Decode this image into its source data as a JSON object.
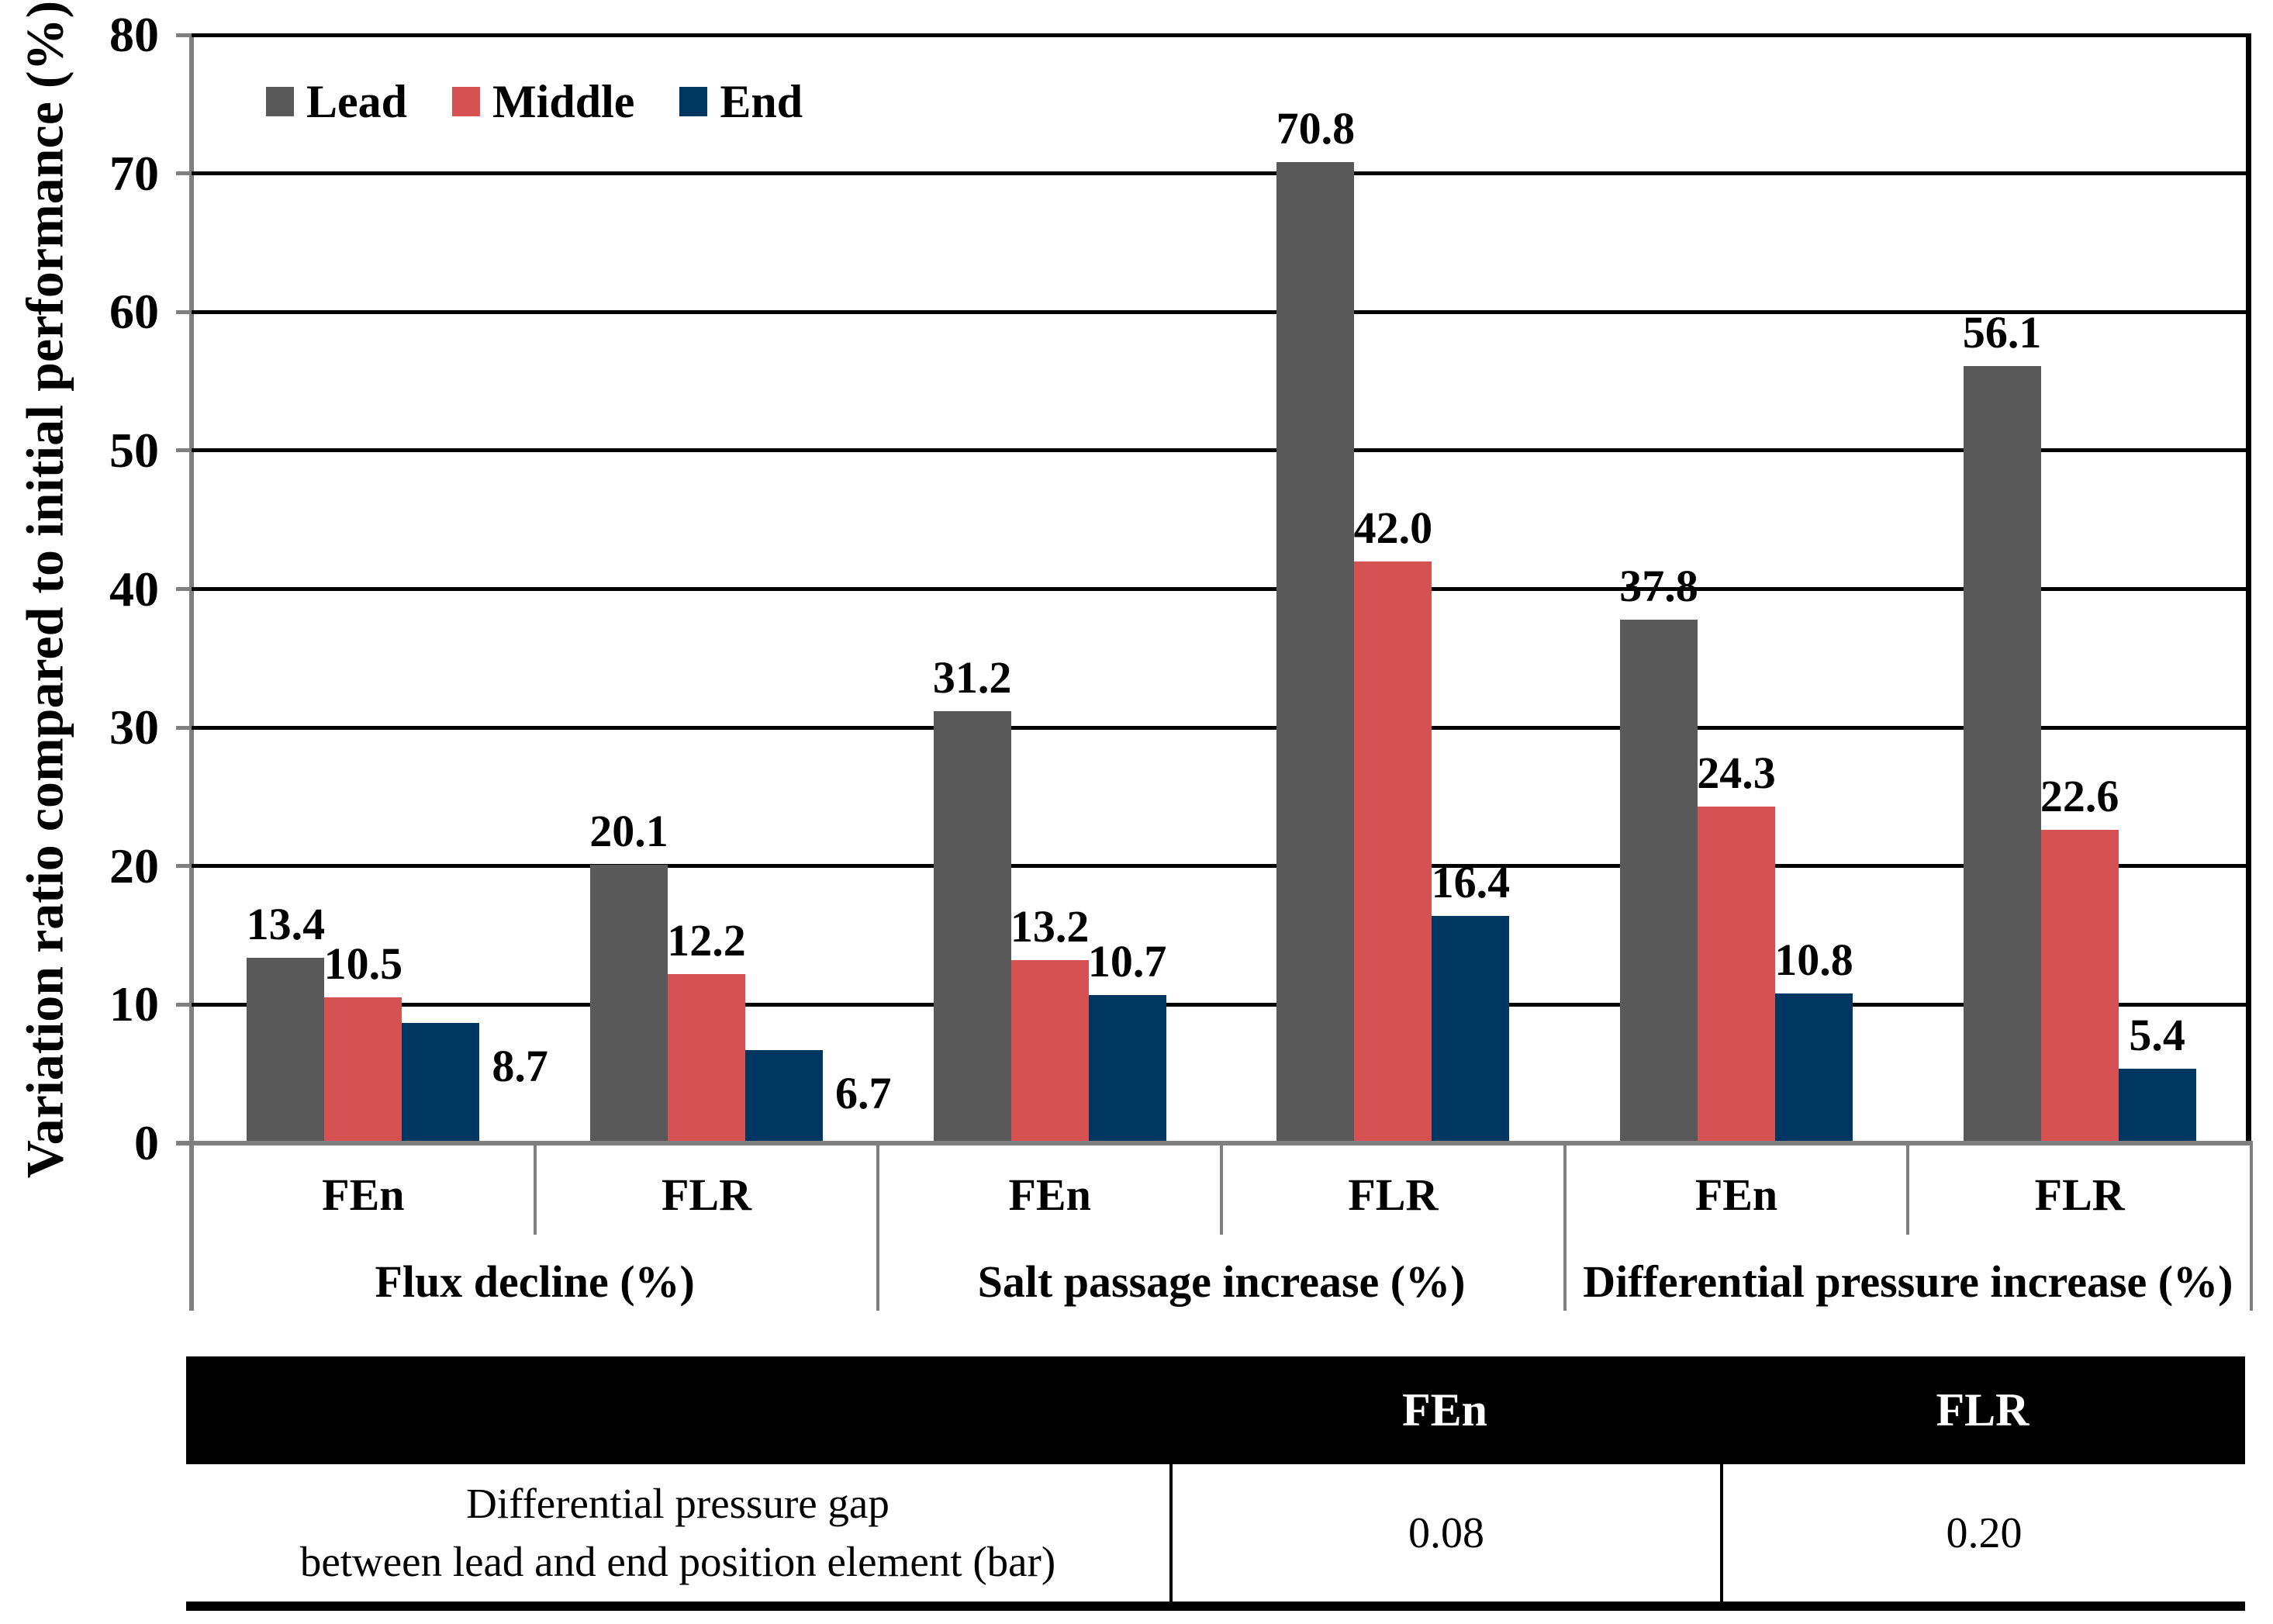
{
  "chart_data": {
    "type": "bar",
    "title": "",
    "ylabel": "Variation ratio compared to initial performance (%)",
    "ylim": [
      0,
      80
    ],
    "yticks": [
      0,
      10,
      20,
      30,
      40,
      50,
      60,
      70,
      80
    ],
    "grid": true,
    "legend_position": "top-left-inside",
    "groups": [
      {
        "label": "Flux decline (%)",
        "subcategories": [
          "FEn",
          "FLR"
        ]
      },
      {
        "label": "Salt passage increase (%)",
        "subcategories": [
          "FEn",
          "FLR"
        ]
      },
      {
        "label": "Differential pressure increase (%)",
        "subcategories": [
          "FEn",
          "FLR"
        ]
      }
    ],
    "series": [
      {
        "name": "Lead",
        "color": "#595959",
        "values": [
          13.4,
          20.1,
          31.2,
          70.8,
          37.8,
          56.1
        ]
      },
      {
        "name": "Middle",
        "color": "#D65252",
        "values": [
          10.5,
          12.2,
          13.2,
          42.0,
          24.3,
          22.6
        ]
      },
      {
        "name": "End",
        "color": "#003761",
        "values": [
          8.7,
          6.7,
          10.7,
          16.4,
          10.8,
          5.4
        ]
      }
    ]
  },
  "table": {
    "header": [
      "",
      "FEn",
      "FLR"
    ],
    "row": {
      "label_line1": "Differential pressure gap",
      "label_line2": "between lead and end position element (bar)",
      "values": [
        "0.08",
        "0.20"
      ]
    }
  },
  "colors": {
    "axis_line": "#7F7F7F",
    "gridline": "#000000",
    "table_header_bg": "#000000",
    "table_header_text": "#FFFFFF"
  }
}
